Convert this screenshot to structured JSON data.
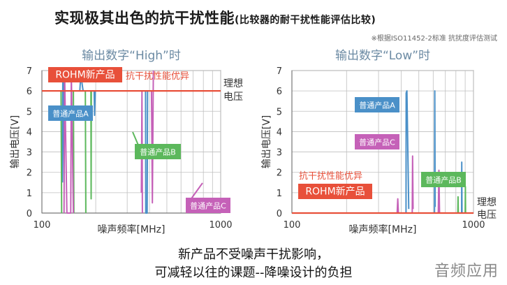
{
  "header": {
    "title": "实现极其出色的抗干扰性能",
    "subtitle": "(比较器的耐干扰性能评估比较)",
    "note": "※根据ISO11452-2标准 抗扰度评估测试"
  },
  "footer": {
    "line1": "新产品不受噪声干扰影响，",
    "line2": "可减轻以往的课题--降噪设计的负担",
    "watermark": "音频应用"
  },
  "colors": {
    "rohm": "#e8503a",
    "product_a": "#4a90c8",
    "product_b": "#5cb85c",
    "product_c": "#c561b8",
    "grid": "#bfbfbf",
    "axis": "#777777",
    "panel_title": "#6b8aa3"
  },
  "chart_data": [
    {
      "type": "line",
      "title": "输出数字“High”时",
      "xlabel": "噪声频率[MHz]",
      "ylabel": "输出电压[V]",
      "xscale": "log",
      "xlim": [
        100,
        1000
      ],
      "ylim": [
        0,
        7
      ],
      "x_ticks": [
        "100",
        "1000"
      ],
      "y_ticks": [
        "0",
        "1",
        "2",
        "3",
        "4",
        "5",
        "6",
        "7"
      ],
      "grid": true,
      "ideal_label": "理想\n电压",
      "series": [
        {
          "name": "ROHM新产品",
          "color_key": "rohm",
          "points": [
            [
              100,
              6
            ],
            [
              1000,
              6
            ]
          ]
        },
        {
          "name": "普通产品A",
          "color_key": "product_a",
          "points": [
            [
              130,
              1.5
            ],
            [
              131,
              7
            ],
            [
              132,
              7
            ],
            [
              133,
              1.5
            ],
            [
              null,
              null
            ],
            [
              163,
              6
            ],
            [
              165,
              6.8
            ],
            [
              170,
              6
            ],
            [
              null,
              null
            ],
            [
              196,
              6
            ],
            [
              197,
              4.8
            ],
            [
              199,
              6
            ],
            [
              null,
              null
            ],
            [
              380,
              6
            ],
            [
              381,
              0
            ],
            [
              388,
              0
            ],
            [
              390,
              6
            ]
          ]
        },
        {
          "name": "普通产品B",
          "color_key": "product_b",
          "points": [
            [
              128,
              6
            ],
            [
              129,
              0
            ],
            [
              null,
              null
            ],
            [
              150,
              6
            ],
            [
              151,
              0
            ],
            [
              null,
              null
            ],
            [
              175,
              6
            ],
            [
              176,
              0
            ],
            [
              null,
              null
            ],
            [
              188,
              6
            ],
            [
              188.5,
              0.7
            ],
            [
              189,
              6
            ]
          ]
        },
        {
          "name": "普通产品C",
          "color_key": "product_c",
          "points": [
            [
              133,
              0
            ],
            [
              134,
              7
            ],
            [
              138,
              0
            ],
            [
              145,
              0
            ],
            [
              146,
              7
            ],
            [
              150,
              0
            ],
            [
              null,
              null
            ],
            [
              360,
              1
            ],
            [
              363,
              6
            ],
            [
              365,
              0
            ],
            [
              null,
              null
            ],
            [
              410,
              6
            ],
            [
              415,
              0.5
            ],
            [
              420,
              7
            ]
          ]
        }
      ],
      "labels": {
        "rohm": "ROHM新产品",
        "best": "抗干扰性能优异",
        "a": "普通产品A",
        "b": "普通产品B",
        "c": "普通产品C"
      }
    },
    {
      "type": "line",
      "title": "输出数字“Low”时",
      "xlabel": "噪声频率[MHz]",
      "ylabel": "输出电压[V]",
      "xscale": "log",
      "xlim": [
        100,
        1000
      ],
      "ylim": [
        0,
        7
      ],
      "x_ticks": [
        "100",
        "1000"
      ],
      "y_ticks": [
        "0",
        "1",
        "2",
        "3",
        "4",
        "5",
        "6",
        "7"
      ],
      "grid": true,
      "ideal_label": "理想\n电压",
      "series": [
        {
          "name": "ROHM新产品",
          "color_key": "rohm",
          "points": [
            [
              100,
              0
            ],
            [
              1000,
              0
            ]
          ]
        },
        {
          "name": "普通产品A",
          "color_key": "product_a",
          "points": [
            [
              425,
              0
            ],
            [
              426,
              5.9
            ],
            [
              430,
              6
            ],
            [
              440,
              0.2
            ],
            [
              null,
              null
            ],
            [
              610,
              0
            ],
            [
              612,
              6
            ],
            [
              615,
              0.3
            ],
            [
              null,
              null
            ],
            [
              860,
              0
            ],
            [
              862,
              2.5
            ],
            [
              865,
              0
            ]
          ]
        },
        {
          "name": "普通产品B",
          "color_key": "product_b",
          "points": [
            [
              820,
              0
            ],
            [
              822,
              0.8
            ],
            [
              825,
              0
            ],
            [
              null,
              null
            ],
            [
              900,
              0
            ],
            [
              902,
              1.3
            ],
            [
              905,
              0
            ]
          ]
        },
        {
          "name": "普通产品C",
          "color_key": "product_c",
          "points": [
            [
              380,
              0
            ],
            [
              383,
              0.7
            ],
            [
              386,
              0
            ],
            [
              null,
              null
            ],
            [
              460,
              0
            ],
            [
              462,
              2.8
            ],
            [
              465,
              0.2
            ],
            [
              null,
              null
            ],
            [
              640,
              0
            ],
            [
              645,
              2.1
            ],
            [
              650,
              0
            ]
          ]
        }
      ],
      "labels": {
        "rohm": "ROHM新产品",
        "best": "抗干扰性能优异",
        "a": "普通产品A",
        "b": "普通产品B",
        "c": "普通产品C"
      }
    }
  ]
}
